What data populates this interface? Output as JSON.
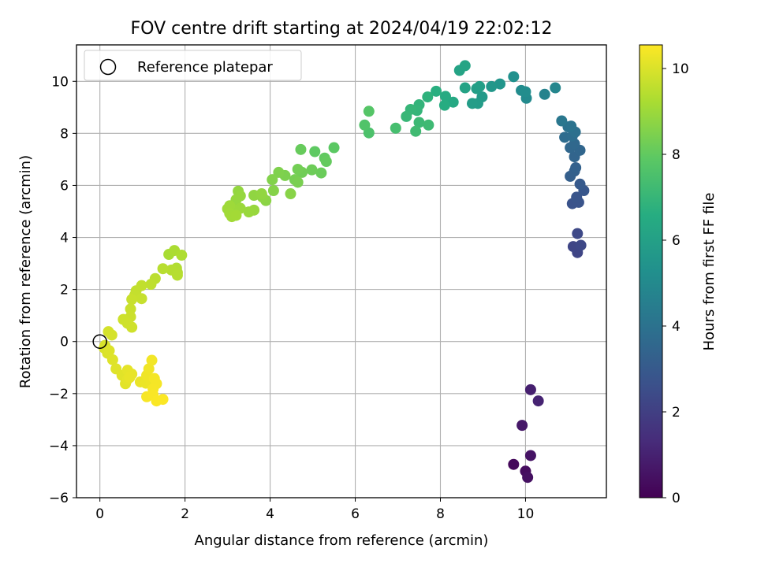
{
  "chart_data": {
    "type": "scatter",
    "title": "FOV centre drift starting at 2024/04/19 22:02:12",
    "xlabel": "Angular distance from reference (arcmin)",
    "ylabel": "Rotation from reference (arcmin)",
    "xlim": [
      -0.55,
      11.9
    ],
    "ylim": [
      -6.0,
      11.4
    ],
    "xticks": [
      0,
      2,
      4,
      6,
      8,
      10
    ],
    "yticks": [
      -6,
      -4,
      -2,
      0,
      2,
      4,
      6,
      8,
      10
    ],
    "grid": true,
    "legend": {
      "placement": "top-left",
      "entries": [
        "Reference platepar"
      ]
    },
    "reference_point": {
      "x": 0,
      "y": 0
    },
    "colorbar": {
      "label": "Hours from first FF file",
      "range": [
        0,
        10.55
      ],
      "ticks": [
        0,
        2,
        4,
        6,
        8,
        10
      ],
      "colormap": "viridis"
    },
    "points": [
      {
        "x": 9.72,
        "y": -4.72,
        "h": 0.25
      },
      {
        "x": 10.0,
        "y": -4.98,
        "h": 0.35
      },
      {
        "x": 10.05,
        "y": -5.22,
        "h": 0.45
      },
      {
        "x": 10.12,
        "y": -4.38,
        "h": 0.55
      },
      {
        "x": 9.92,
        "y": -3.22,
        "h": 0.7
      },
      {
        "x": 10.12,
        "y": -1.85,
        "h": 0.95
      },
      {
        "x": 10.3,
        "y": -2.28,
        "h": 1.05
      },
      {
        "x": 11.22,
        "y": 3.42,
        "h": 2.2
      },
      {
        "x": 11.12,
        "y": 3.65,
        "h": 2.25
      },
      {
        "x": 11.3,
        "y": 3.7,
        "h": 2.3
      },
      {
        "x": 11.22,
        "y": 4.15,
        "h": 2.35
      },
      {
        "x": 11.1,
        "y": 5.3,
        "h": 2.7
      },
      {
        "x": 11.25,
        "y": 5.35,
        "h": 2.75
      },
      {
        "x": 11.2,
        "y": 5.55,
        "h": 2.8
      },
      {
        "x": 11.37,
        "y": 5.8,
        "h": 2.9
      },
      {
        "x": 11.28,
        "y": 6.05,
        "h": 3.0
      },
      {
        "x": 11.05,
        "y": 6.35,
        "h": 3.2
      },
      {
        "x": 11.15,
        "y": 6.55,
        "h": 3.25
      },
      {
        "x": 11.18,
        "y": 6.68,
        "h": 3.3
      },
      {
        "x": 11.15,
        "y": 7.1,
        "h": 3.45
      },
      {
        "x": 11.28,
        "y": 7.35,
        "h": 3.5
      },
      {
        "x": 11.05,
        "y": 7.45,
        "h": 3.55
      },
      {
        "x": 11.15,
        "y": 7.6,
        "h": 3.6
      },
      {
        "x": 10.92,
        "y": 7.85,
        "h": 3.75
      },
      {
        "x": 11.1,
        "y": 7.9,
        "h": 3.8
      },
      {
        "x": 11.17,
        "y": 8.05,
        "h": 3.9
      },
      {
        "x": 11.0,
        "y": 8.25,
        "h": 4.0
      },
      {
        "x": 11.07,
        "y": 8.28,
        "h": 4.05
      },
      {
        "x": 10.85,
        "y": 8.48,
        "h": 4.2
      },
      {
        "x": 10.45,
        "y": 9.5,
        "h": 4.7
      },
      {
        "x": 10.7,
        "y": 9.75,
        "h": 4.85
      },
      {
        "x": 10.02,
        "y": 9.35,
        "h": 5.0
      },
      {
        "x": 9.9,
        "y": 9.65,
        "h": 5.1
      },
      {
        "x": 10.0,
        "y": 9.6,
        "h": 5.15
      },
      {
        "x": 9.72,
        "y": 10.18,
        "h": 5.3
      },
      {
        "x": 9.4,
        "y": 9.9,
        "h": 5.5
      },
      {
        "x": 9.2,
        "y": 9.8,
        "h": 5.6
      },
      {
        "x": 8.98,
        "y": 9.4,
        "h": 5.75
      },
      {
        "x": 8.88,
        "y": 9.15,
        "h": 5.8
      },
      {
        "x": 8.75,
        "y": 9.15,
        "h": 5.85
      },
      {
        "x": 8.85,
        "y": 9.72,
        "h": 5.9
      },
      {
        "x": 8.92,
        "y": 9.8,
        "h": 5.95
      },
      {
        "x": 8.58,
        "y": 9.75,
        "h": 6.1
      },
      {
        "x": 8.45,
        "y": 10.42,
        "h": 6.15
      },
      {
        "x": 8.58,
        "y": 10.6,
        "h": 6.2
      },
      {
        "x": 8.3,
        "y": 9.2,
        "h": 6.35
      },
      {
        "x": 8.12,
        "y": 9.42,
        "h": 6.45
      },
      {
        "x": 8.1,
        "y": 9.08,
        "h": 6.55
      },
      {
        "x": 7.9,
        "y": 9.62,
        "h": 6.65
      },
      {
        "x": 7.7,
        "y": 9.4,
        "h": 6.8
      },
      {
        "x": 7.5,
        "y": 9.1,
        "h": 6.9
      },
      {
        "x": 7.45,
        "y": 8.88,
        "h": 6.95
      },
      {
        "x": 7.3,
        "y": 8.92,
        "h": 7.0
      },
      {
        "x": 7.2,
        "y": 8.65,
        "h": 7.05
      },
      {
        "x": 7.5,
        "y": 8.42,
        "h": 7.15
      },
      {
        "x": 7.72,
        "y": 8.32,
        "h": 7.2
      },
      {
        "x": 7.42,
        "y": 8.08,
        "h": 7.25
      },
      {
        "x": 6.95,
        "y": 8.2,
        "h": 7.4
      },
      {
        "x": 6.32,
        "y": 8.02,
        "h": 7.55
      },
      {
        "x": 6.22,
        "y": 8.32,
        "h": 7.65
      },
      {
        "x": 6.32,
        "y": 8.85,
        "h": 7.75
      },
      {
        "x": 5.5,
        "y": 7.45,
        "h": 7.9
      },
      {
        "x": 5.05,
        "y": 7.3,
        "h": 7.95
      },
      {
        "x": 5.28,
        "y": 7.05,
        "h": 8.0
      },
      {
        "x": 5.32,
        "y": 6.92,
        "h": 8.05
      },
      {
        "x": 4.72,
        "y": 7.38,
        "h": 8.1
      },
      {
        "x": 5.2,
        "y": 6.48,
        "h": 8.15
      },
      {
        "x": 4.98,
        "y": 6.6,
        "h": 8.2
      },
      {
        "x": 4.75,
        "y": 6.5,
        "h": 8.25
      },
      {
        "x": 4.65,
        "y": 6.62,
        "h": 8.3
      },
      {
        "x": 4.58,
        "y": 6.22,
        "h": 8.35
      },
      {
        "x": 4.65,
        "y": 6.12,
        "h": 8.4
      },
      {
        "x": 4.35,
        "y": 6.38,
        "h": 8.45
      },
      {
        "x": 4.2,
        "y": 6.5,
        "h": 8.5
      },
      {
        "x": 4.05,
        "y": 6.22,
        "h": 8.55
      },
      {
        "x": 4.08,
        "y": 5.8,
        "h": 8.6
      },
      {
        "x": 4.48,
        "y": 5.68,
        "h": 8.65
      },
      {
        "x": 3.9,
        "y": 5.42,
        "h": 8.7
      },
      {
        "x": 3.82,
        "y": 5.55,
        "h": 8.75
      },
      {
        "x": 3.62,
        "y": 5.62,
        "h": 8.8
      },
      {
        "x": 3.8,
        "y": 5.68,
        "h": 8.82
      },
      {
        "x": 3.25,
        "y": 5.78,
        "h": 8.85
      },
      {
        "x": 3.3,
        "y": 5.6,
        "h": 8.88
      },
      {
        "x": 3.2,
        "y": 5.45,
        "h": 8.9
      },
      {
        "x": 3.62,
        "y": 5.05,
        "h": 8.92
      },
      {
        "x": 3.5,
        "y": 4.98,
        "h": 8.95
      },
      {
        "x": 3.3,
        "y": 5.12,
        "h": 8.98
      },
      {
        "x": 3.18,
        "y": 5.05,
        "h": 9.0
      },
      {
        "x": 3.05,
        "y": 5.22,
        "h": 9.02
      },
      {
        "x": 3.0,
        "y": 5.1,
        "h": 9.05
      },
      {
        "x": 3.05,
        "y": 4.92,
        "h": 9.08
      },
      {
        "x": 3.1,
        "y": 4.8,
        "h": 9.1
      },
      {
        "x": 3.2,
        "y": 4.85,
        "h": 9.12
      },
      {
        "x": 1.62,
        "y": 3.35,
        "h": 9.2
      },
      {
        "x": 1.75,
        "y": 3.5,
        "h": 9.25
      },
      {
        "x": 1.92,
        "y": 3.32,
        "h": 9.3
      },
      {
        "x": 1.8,
        "y": 2.82,
        "h": 9.35
      },
      {
        "x": 1.82,
        "y": 2.65,
        "h": 9.38
      },
      {
        "x": 1.68,
        "y": 2.75,
        "h": 9.4
      },
      {
        "x": 1.82,
        "y": 2.55,
        "h": 9.42
      },
      {
        "x": 1.48,
        "y": 2.8,
        "h": 9.45
      },
      {
        "x": 1.3,
        "y": 2.42,
        "h": 9.5
      },
      {
        "x": 1.2,
        "y": 2.2,
        "h": 9.55
      },
      {
        "x": 0.98,
        "y": 2.15,
        "h": 9.6
      },
      {
        "x": 0.85,
        "y": 1.95,
        "h": 9.62
      },
      {
        "x": 0.82,
        "y": 1.78,
        "h": 9.65
      },
      {
        "x": 0.98,
        "y": 1.65,
        "h": 9.68
      },
      {
        "x": 0.75,
        "y": 1.62,
        "h": 9.7
      },
      {
        "x": 0.72,
        "y": 1.25,
        "h": 9.72
      },
      {
        "x": 0.72,
        "y": 0.95,
        "h": 9.75
      },
      {
        "x": 0.55,
        "y": 0.85,
        "h": 9.78
      },
      {
        "x": 0.65,
        "y": 0.7,
        "h": 9.8
      },
      {
        "x": 0.75,
        "y": 0.55,
        "h": 9.82
      },
      {
        "x": 0.2,
        "y": 0.38,
        "h": 9.9
      },
      {
        "x": 0.28,
        "y": 0.25,
        "h": 9.92
      },
      {
        "x": 0.12,
        "y": -0.15,
        "h": 9.95
      },
      {
        "x": 0.1,
        "y": -0.25,
        "h": 9.97
      },
      {
        "x": 0.18,
        "y": -0.45,
        "h": 10.0
      },
      {
        "x": 0.22,
        "y": -0.35,
        "h": 10.02
      },
      {
        "x": 0.3,
        "y": -0.7,
        "h": 10.05
      },
      {
        "x": 0.38,
        "y": -1.05,
        "h": 10.08
      },
      {
        "x": 0.52,
        "y": -1.3,
        "h": 10.1
      },
      {
        "x": 0.6,
        "y": -1.62,
        "h": 10.12
      },
      {
        "x": 0.65,
        "y": -1.45,
        "h": 10.15
      },
      {
        "x": 0.65,
        "y": -1.1,
        "h": 10.17
      },
      {
        "x": 0.75,
        "y": -1.25,
        "h": 10.2
      },
      {
        "x": 0.7,
        "y": -1.38,
        "h": 10.22
      },
      {
        "x": 0.95,
        "y": -1.55,
        "h": 10.25
      },
      {
        "x": 1.08,
        "y": -1.6,
        "h": 10.27
      },
      {
        "x": 1.2,
        "y": -1.55,
        "h": 10.3
      },
      {
        "x": 1.1,
        "y": -1.3,
        "h": 10.32
      },
      {
        "x": 1.15,
        "y": -1.05,
        "h": 10.35
      },
      {
        "x": 1.22,
        "y": -0.72,
        "h": 10.38
      },
      {
        "x": 1.28,
        "y": -1.42,
        "h": 10.4
      },
      {
        "x": 1.33,
        "y": -1.62,
        "h": 10.42
      },
      {
        "x": 1.25,
        "y": -1.82,
        "h": 10.44
      },
      {
        "x": 1.1,
        "y": -2.12,
        "h": 10.46
      },
      {
        "x": 1.25,
        "y": -2.05,
        "h": 10.48
      },
      {
        "x": 1.33,
        "y": -2.28,
        "h": 10.5
      },
      {
        "x": 1.48,
        "y": -2.22,
        "h": 10.52
      }
    ]
  }
}
